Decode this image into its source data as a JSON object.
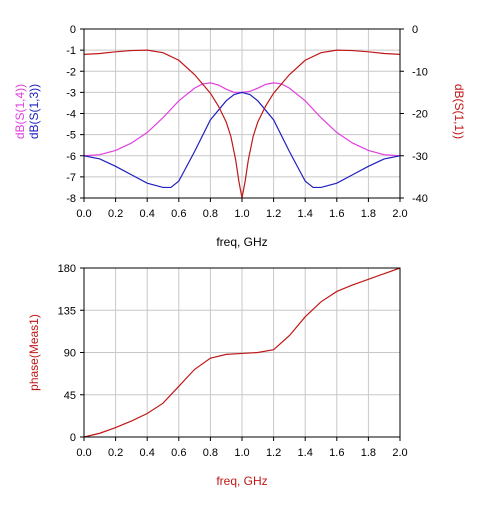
{
  "chart_data": [
    {
      "type": "line",
      "xlabel": "freq, GHz",
      "x_ticks": [
        "0.0",
        "0.2",
        "0.4",
        "0.6",
        "0.8",
        "1.0",
        "1.2",
        "1.4",
        "1.6",
        "1.8",
        "2.0"
      ],
      "xlim": [
        0,
        2
      ],
      "ylabel_left_parts": [
        "dB(S(1,4))",
        "dB(S(1,3))"
      ],
      "ylim_left": [
        -8,
        0
      ],
      "y_ticks_left": [
        "0",
        "-1",
        "-2",
        "-3",
        "-4",
        "-5",
        "-6",
        "-7",
        "-8"
      ],
      "ylabel_right": "dB(S(1,1))",
      "ylim_right": [
        -40,
        0
      ],
      "y_ticks_right": [
        "0",
        "-10",
        "-20",
        "-30",
        "-40"
      ],
      "grid": true,
      "series": [
        {
          "name": "dB(S(1,4))",
          "axis": "left",
          "color": "#e040e0",
          "x": [
            0,
            0.1,
            0.2,
            0.3,
            0.4,
            0.5,
            0.6,
            0.7,
            0.75,
            0.8,
            0.85,
            0.9,
            0.95,
            1.0,
            1.05,
            1.1,
            1.15,
            1.2,
            1.25,
            1.3,
            1.4,
            1.5,
            1.6,
            1.7,
            1.8,
            1.9,
            2.0
          ],
          "y": [
            -6.0,
            -5.95,
            -5.75,
            -5.4,
            -4.9,
            -4.2,
            -3.4,
            -2.8,
            -2.6,
            -2.55,
            -2.65,
            -2.85,
            -3.0,
            -3.0,
            -2.95,
            -2.8,
            -2.62,
            -2.55,
            -2.6,
            -2.8,
            -3.4,
            -4.2,
            -4.9,
            -5.4,
            -5.75,
            -5.95,
            -6.0
          ]
        },
        {
          "name": "dB(S(1,3))",
          "axis": "left",
          "color": "#2020c0",
          "x": [
            0,
            0.1,
            0.2,
            0.3,
            0.4,
            0.5,
            0.55,
            0.6,
            0.7,
            0.8,
            0.9,
            0.95,
            1.0,
            1.05,
            1.1,
            1.2,
            1.3,
            1.4,
            1.45,
            1.5,
            1.6,
            1.7,
            1.8,
            1.9,
            2.0
          ],
          "y": [
            -6.0,
            -6.15,
            -6.5,
            -6.9,
            -7.3,
            -7.5,
            -7.5,
            -7.2,
            -5.8,
            -4.3,
            -3.4,
            -3.1,
            -3.0,
            -3.1,
            -3.4,
            -4.3,
            -5.8,
            -7.2,
            -7.5,
            -7.5,
            -7.3,
            -6.9,
            -6.5,
            -6.15,
            -6.0
          ]
        },
        {
          "name": "dB(S(1,1))",
          "axis": "right",
          "color": "#c01818",
          "x": [
            0,
            0.1,
            0.2,
            0.3,
            0.4,
            0.5,
            0.6,
            0.7,
            0.8,
            0.85,
            0.9,
            0.93,
            0.96,
            0.98,
            1.0,
            1.02,
            1.04,
            1.07,
            1.1,
            1.15,
            1.2,
            1.3,
            1.4,
            1.5,
            1.6,
            1.7,
            1.8,
            1.9,
            2.0
          ],
          "y": [
            -6.0,
            -5.8,
            -5.4,
            -5.1,
            -5.0,
            -5.6,
            -7.4,
            -10.8,
            -15.2,
            -18.2,
            -22.0,
            -25.5,
            -31.0,
            -36.0,
            -40.0,
            -36.0,
            -31.0,
            -25.5,
            -22.0,
            -18.2,
            -15.2,
            -10.8,
            -7.4,
            -5.6,
            -5.0,
            -5.1,
            -5.4,
            -5.8,
            -6.0
          ]
        }
      ]
    },
    {
      "type": "line",
      "xlabel": "freq, GHz",
      "ylabel": "phase(Meas1)",
      "x_ticks": [
        "0.0",
        "0.2",
        "0.4",
        "0.6",
        "0.8",
        "1.0",
        "1.2",
        "1.4",
        "1.6",
        "1.8",
        "2.0"
      ],
      "xlim": [
        0,
        2
      ],
      "y_ticks": [
        "180",
        "135",
        "90",
        "45",
        "0"
      ],
      "ylim": [
        0,
        180
      ],
      "grid": true,
      "series": [
        {
          "name": "phase(Meas1)",
          "color": "#c01818",
          "x": [
            0,
            0.1,
            0.2,
            0.3,
            0.4,
            0.5,
            0.6,
            0.7,
            0.8,
            0.9,
            1.0,
            1.1,
            1.2,
            1.3,
            1.4,
            1.5,
            1.6,
            1.7,
            1.8,
            1.9,
            2.0
          ],
          "y": [
            0,
            4,
            10,
            17,
            25,
            36,
            54,
            72,
            84,
            88,
            89,
            90,
            93,
            108,
            128,
            144,
            155,
            162,
            168,
            174,
            180
          ]
        }
      ]
    }
  ]
}
